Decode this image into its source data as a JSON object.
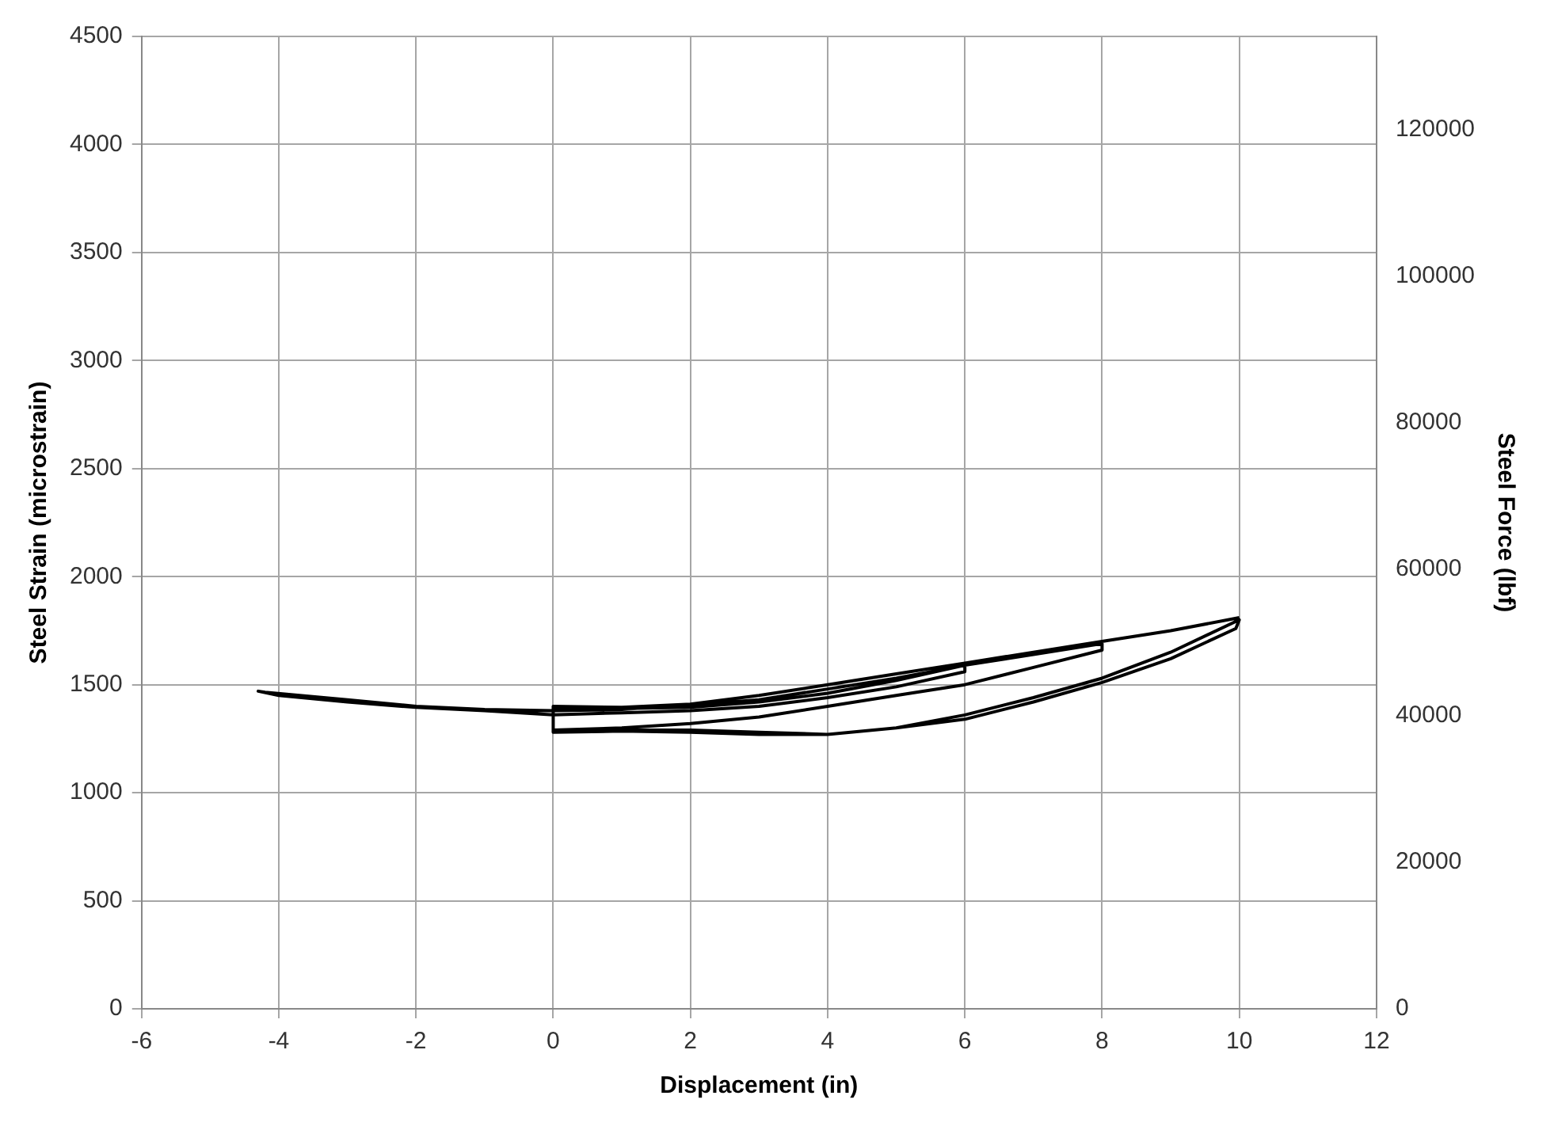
{
  "chart_data": {
    "type": "line",
    "xlabel": "Displacement (in)",
    "ylabel": "Steel Strain (microstrain)",
    "y2label": "Steel Force (lbf)",
    "xlim": [
      -6,
      12
    ],
    "xticks": [
      -6,
      -4,
      -2,
      0,
      2,
      4,
      6,
      8,
      10,
      12
    ],
    "ylim": [
      0,
      4500
    ],
    "yticks": [
      0,
      500,
      1000,
      1500,
      2000,
      2500,
      3000,
      3500,
      4000,
      4500
    ],
    "y2lim": [
      0,
      132750
    ],
    "y2ticks": [
      0,
      20000,
      40000,
      60000,
      80000,
      100000,
      120000
    ],
    "grid": true,
    "legend": false,
    "marker": "none",
    "line_style": "solid",
    "series": [
      {
        "color": "#000000",
        "x": [
          0,
          1,
          2,
          3,
          4,
          5,
          6,
          6,
          5,
          4,
          3,
          2,
          1,
          0,
          -1,
          -2,
          -3,
          -4,
          -4.3,
          -4.2,
          -3,
          -2,
          -1,
          0,
          1,
          2,
          3,
          4,
          5,
          6,
          7,
          8,
          8,
          7,
          6,
          5,
          4,
          3,
          2,
          1,
          0,
          0,
          1,
          2,
          3,
          4,
          5,
          6,
          7,
          8,
          9,
          10,
          9.95,
          9,
          8,
          7,
          6,
          5,
          4,
          3,
          2,
          1,
          0,
          0,
          1,
          2,
          3,
          4,
          5,
          6,
          7,
          8,
          9,
          10
        ],
        "values": [
          1390,
          1390,
          1395,
          1420,
          1460,
          1520,
          1590,
          1560,
          1490,
          1440,
          1400,
          1380,
          1370,
          1360,
          1380,
          1395,
          1420,
          1450,
          1470,
          1465,
          1430,
          1400,
          1385,
          1380,
          1385,
          1405,
          1430,
          1480,
          1530,
          1590,
          1640,
          1690,
          1660,
          1580,
          1500,
          1450,
          1400,
          1350,
          1320,
          1300,
          1290,
          1280,
          1290,
          1290,
          1280,
          1270,
          1300,
          1360,
          1440,
          1530,
          1650,
          1800,
          1760,
          1620,
          1510,
          1420,
          1340,
          1300,
          1270,
          1270,
          1280,
          1285,
          1280,
          1400,
          1395,
          1410,
          1450,
          1500,
          1550,
          1600,
          1650,
          1700,
          1750,
          1810
        ]
      }
    ]
  }
}
